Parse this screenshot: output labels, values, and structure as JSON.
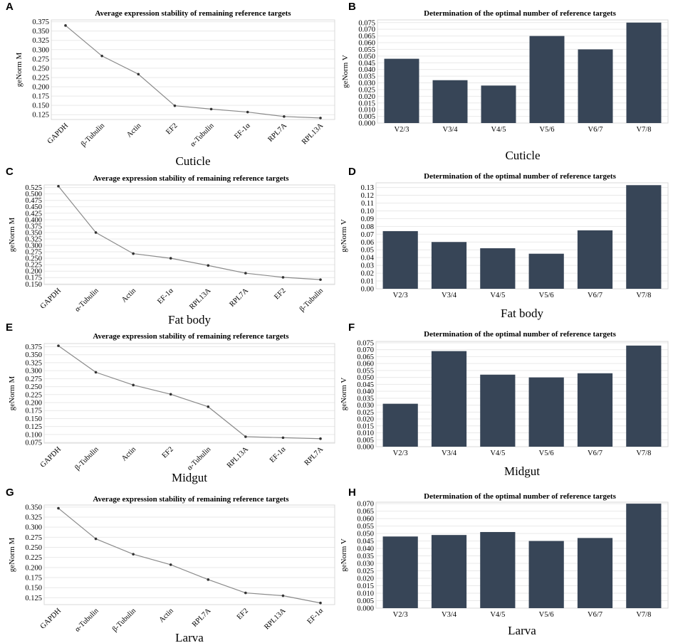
{
  "chart_data": [
    {
      "id": "A",
      "type": "line",
      "title": "Average expression stability of remaining reference targets",
      "ylabel": "geNorm M",
      "xlabel": "Cuticle",
      "categories": [
        "GAPDH",
        "β-Tubulin",
        "Actin",
        "EF2",
        "α-Tubulin",
        "EF-1α",
        "RPL7A",
        "RPL13A"
      ],
      "values": [
        0.365,
        0.283,
        0.234,
        0.149,
        0.14,
        0.132,
        0.12,
        0.116
      ],
      "yticks": [
        0.125,
        0.15,
        0.175,
        0.2,
        0.225,
        0.25,
        0.275,
        0.3,
        0.325,
        0.35,
        0.375
      ],
      "tick_decimals": 3,
      "ylim": [
        0.112,
        0.38
      ]
    },
    {
      "id": "B",
      "type": "bar",
      "title": "Determination of the optimal number of reference targets",
      "ylabel": "geNorm V",
      "xlabel": "Cuticle",
      "categories": [
        "V2/3",
        "V3/4",
        "V4/5",
        "V5/6",
        "V6/7",
        "V7/8"
      ],
      "values": [
        0.048,
        0.032,
        0.028,
        0.065,
        0.055,
        0.075
      ],
      "yticks": [
        0.0,
        0.005,
        0.01,
        0.015,
        0.02,
        0.025,
        0.03,
        0.035,
        0.04,
        0.045,
        0.05,
        0.055,
        0.06,
        0.065,
        0.07,
        0.075
      ],
      "tick_decimals": 3,
      "ylim": [
        0,
        0.077
      ]
    },
    {
      "id": "C",
      "type": "line",
      "title": "Average expression stability of remaining reference targets",
      "ylabel": "geNorm M",
      "xlabel": "Fat body",
      "categories": [
        "GAPDH",
        "α-Tubulin",
        "Actin",
        "EF-1α",
        "RPL13A",
        "RPL7A",
        "EF2",
        "β-Tubulin"
      ],
      "values": [
        0.53,
        0.35,
        0.268,
        0.25,
        0.222,
        0.192,
        0.176,
        0.167
      ],
      "yticks": [
        0.15,
        0.175,
        0.2,
        0.225,
        0.25,
        0.275,
        0.3,
        0.325,
        0.35,
        0.375,
        0.4,
        0.425,
        0.45,
        0.475,
        0.5,
        0.525
      ],
      "tick_decimals": 3,
      "ylim": [
        0.148,
        0.535
      ]
    },
    {
      "id": "D",
      "type": "bar",
      "title": "Determination of the optimal number of reference targets",
      "ylabel": "geNorm V",
      "xlabel": "Fat body",
      "categories": [
        "V2/3",
        "V3/4",
        "V4/5",
        "V5/6",
        "V6/7",
        "V7/8"
      ],
      "values": [
        0.074,
        0.06,
        0.052,
        0.045,
        0.075,
        0.133
      ],
      "yticks": [
        0.0,
        0.01,
        0.02,
        0.03,
        0.04,
        0.05,
        0.06,
        0.07,
        0.08,
        0.09,
        0.1,
        0.11,
        0.12,
        0.13
      ],
      "tick_decimals": 2,
      "ylim": [
        0,
        0.136
      ]
    },
    {
      "id": "E",
      "type": "line",
      "title": "Average expression stability of remaining reference targets",
      "ylabel": "geNorm M",
      "xlabel": "Midgut",
      "categories": [
        "GAPDH",
        "β-Tubulin",
        "Actin",
        "EF2",
        "α-Tubulin",
        "RPL13A",
        "EF-1α",
        "RPL7A"
      ],
      "values": [
        0.378,
        0.295,
        0.255,
        0.226,
        0.187,
        0.093,
        0.09,
        0.087
      ],
      "yticks": [
        0.075,
        0.1,
        0.125,
        0.15,
        0.175,
        0.2,
        0.225,
        0.25,
        0.275,
        0.3,
        0.325,
        0.35,
        0.375
      ],
      "tick_decimals": 3,
      "ylim": [
        0.073,
        0.385
      ]
    },
    {
      "id": "F",
      "type": "bar",
      "title": "Determination of the optimal number of reference targets",
      "ylabel": "geNorm V",
      "xlabel": "Midgut",
      "categories": [
        "V2/3",
        "V3/4",
        "V4/5",
        "V5/6",
        "V6/7",
        "V7/8"
      ],
      "values": [
        0.031,
        0.069,
        0.052,
        0.05,
        0.053,
        0.073
      ],
      "yticks": [
        0.0,
        0.005,
        0.01,
        0.015,
        0.02,
        0.025,
        0.03,
        0.035,
        0.04,
        0.045,
        0.05,
        0.055,
        0.06,
        0.065,
        0.07,
        0.075
      ],
      "tick_decimals": 3,
      "ylim": [
        0,
        0.076
      ]
    },
    {
      "id": "G",
      "type": "line",
      "title": "Average expression stability of remaining reference targets",
      "ylabel": "geNorm M",
      "xlabel": "Larva",
      "categories": [
        "GAPDH",
        "α-Tubulin",
        "β-Tubulin",
        "Actin",
        "RPL7A",
        "EF2",
        "RPL13A",
        "EF-1α"
      ],
      "values": [
        0.347,
        0.271,
        0.233,
        0.207,
        0.17,
        0.137,
        0.13,
        0.112
      ],
      "yticks": [
        0.125,
        0.15,
        0.175,
        0.2,
        0.225,
        0.25,
        0.275,
        0.3,
        0.325,
        0.35
      ],
      "tick_decimals": 3,
      "ylim": [
        0.108,
        0.355
      ]
    },
    {
      "id": "H",
      "type": "bar",
      "title": "Determination of the optimal number of reference targets",
      "ylabel": "geNorm V",
      "xlabel": "Larva",
      "categories": [
        "V2/3",
        "V3/4",
        "V4/5",
        "V5/6",
        "V6/7",
        "V7/8"
      ],
      "values": [
        0.048,
        0.049,
        0.051,
        0.045,
        0.047,
        0.07
      ],
      "yticks": [
        0.0,
        0.005,
        0.01,
        0.015,
        0.02,
        0.025,
        0.03,
        0.035,
        0.04,
        0.045,
        0.05,
        0.055,
        0.06,
        0.065,
        0.07
      ],
      "tick_decimals": 3,
      "ylim": [
        0,
        0.071
      ]
    }
  ]
}
